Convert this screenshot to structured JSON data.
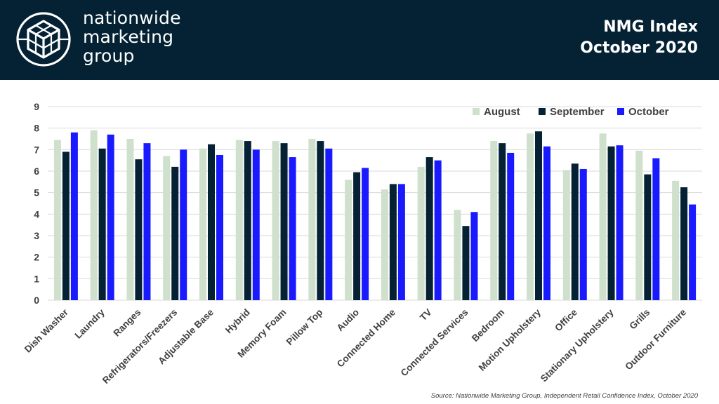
{
  "header": {
    "brand_lines": [
      "nationwide",
      "marketing",
      "group"
    ],
    "title_line1": "NMG Index",
    "title_line2": "October 2020",
    "logo_icon": "cube-in-circle-logo-icon",
    "background_color": "#042233"
  },
  "source_text": "Source: Nationwide Marketing Group, Independent Retail Confidence Index, October 2020",
  "chart_data": {
    "type": "bar",
    "title": "",
    "xlabel": "",
    "ylabel": "",
    "ylim": [
      0,
      9
    ],
    "yticks": [
      0,
      1,
      2,
      3,
      4,
      5,
      6,
      7,
      8,
      9
    ],
    "grid": true,
    "legend_position": "top-right",
    "categories": [
      "Dish Washer",
      "Laundry",
      "Ranges",
      "Refrigerators/Freezers",
      "Adjustable Base",
      "Hybrid",
      "Memory Foam",
      "Pillow Top",
      "Audio",
      "Connected Home",
      "TV",
      "Connected Services",
      "Bedroom",
      "Motion Upholstery",
      "Office",
      "Stationary Upholstery",
      "Grills",
      "Outdoor Furniture"
    ],
    "series": [
      {
        "name": "August",
        "color": "#cfe0cc",
        "values": [
          7.45,
          7.9,
          7.5,
          6.7,
          7.05,
          7.45,
          7.4,
          7.5,
          5.6,
          5.15,
          6.2,
          4.2,
          7.4,
          7.75,
          6.05,
          7.75,
          6.95,
          5.55
        ]
      },
      {
        "name": "September",
        "color": "#042233",
        "values": [
          6.9,
          7.05,
          6.55,
          6.2,
          7.25,
          7.4,
          7.3,
          7.4,
          5.95,
          5.4,
          6.65,
          3.45,
          7.3,
          7.85,
          6.35,
          7.15,
          5.85,
          5.25
        ]
      },
      {
        "name": "October",
        "color": "#1a1aff",
        "values": [
          7.8,
          7.7,
          7.3,
          7.0,
          6.75,
          7.0,
          6.65,
          7.05,
          6.15,
          5.4,
          6.5,
          4.1,
          6.85,
          7.15,
          6.1,
          7.2,
          6.6,
          4.45
        ]
      }
    ]
  }
}
